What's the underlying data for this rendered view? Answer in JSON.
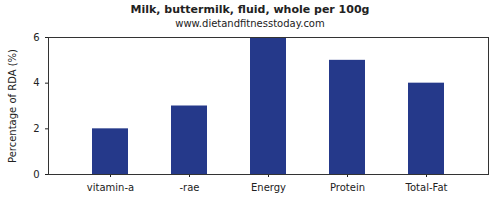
{
  "chart_data": {
    "type": "bar",
    "title": "Milk, buttermilk, fluid, whole per 100g",
    "subtitle": "www.dietandfitnesstoday.com",
    "y_label": "Percentage of RDA (%)",
    "categories": [
      "vitamin-a",
      "-rae",
      "Energy",
      "Protein",
      "Total-Fat"
    ],
    "values": [
      2,
      3,
      6,
      5,
      4
    ],
    "color": "#25398a",
    "ylim": [
      0,
      6
    ],
    "yticks": [
      0,
      2,
      4,
      6
    ],
    "grid": false
  }
}
